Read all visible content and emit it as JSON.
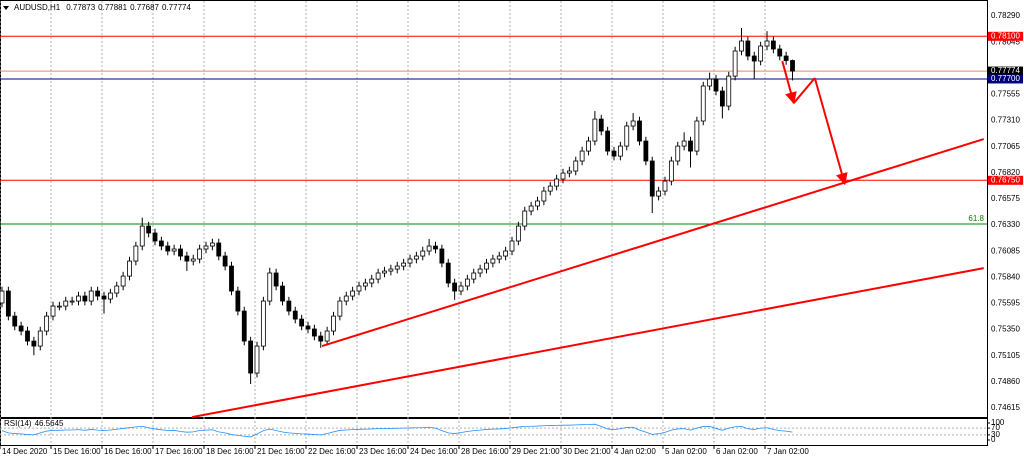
{
  "chart_data": [
    {
      "type": "candlestick",
      "title": "AUDUSD,H1",
      "categories": [
        "14 Dec 2020",
        null,
        null,
        null,
        null,
        null,
        null,
        null,
        "15 Dec 16:00",
        null,
        null,
        null,
        null,
        null,
        null,
        null,
        "16 Dec 16:00",
        null,
        null,
        null,
        null,
        null,
        null,
        null,
        "17 Dec 16:00",
        null,
        null,
        null,
        null,
        null,
        null,
        null,
        "18 Dec 16:00",
        null,
        null,
        null,
        null,
        null,
        null,
        null,
        "21 Dec 16:00",
        null,
        null,
        null,
        null,
        null,
        null,
        null,
        "22 Dec 16:00",
        null,
        null,
        null,
        null,
        null,
        null,
        null,
        "23 Dec 16:00",
        null,
        null,
        null,
        null,
        null,
        null,
        null,
        "24 Dec 16:00",
        null,
        null,
        null,
        null,
        null,
        null,
        null,
        "28 Dec 16:00",
        null,
        null,
        null,
        null,
        null,
        null,
        null,
        "29 Dec 21:00",
        null,
        null,
        null,
        null,
        null,
        null,
        null,
        "30 Dec 21:00",
        null,
        null,
        null,
        null,
        null,
        null,
        null,
        "4 Jan 02:00",
        null,
        null,
        null,
        null,
        null,
        null,
        null,
        "5 Jan 02:00",
        null,
        null,
        null,
        null,
        null,
        null,
        null,
        "6 Jan 02:00",
        null,
        null,
        null,
        null,
        null,
        null,
        null,
        "7 Jan 02:00",
        null,
        null,
        null,
        null
      ],
      "open": [
        0.756,
        0.75712,
        0.75477,
        0.75384,
        0.75337,
        0.75243,
        0.75196,
        0.75337,
        0.75477,
        0.75571,
        0.75571,
        0.75618,
        0.75618,
        0.75665,
        0.75618,
        0.75712,
        0.75665,
        0.75637,
        0.75693,
        0.75759,
        0.75852,
        0.75993,
        0.76134,
        0.76321,
        0.76256,
        0.76181,
        0.76134,
        0.76087,
        0.76106,
        0.7604,
        0.75993,
        0.76012,
        0.76106,
        0.76134,
        0.76162,
        0.7604,
        0.75946,
        0.75712,
        0.75524,
        0.75243,
        0.74943,
        0.75196,
        0.75618,
        0.75881,
        0.75759,
        0.75618,
        0.75524,
        0.75449,
        0.75384,
        0.75356,
        0.7529,
        0.75243,
        0.75337,
        0.75477,
        0.75618,
        0.75665,
        0.75712,
        0.75759,
        0.75787,
        0.75824,
        0.75881,
        0.75899,
        0.75918,
        0.75946,
        0.75974,
        0.76012,
        0.7604,
        0.76087,
        0.76134,
        0.76106,
        0.75974,
        0.75787,
        0.75712,
        0.75759,
        0.75824,
        0.75881,
        0.75918,
        0.75974,
        0.76012,
        0.7604,
        0.76087,
        0.76181,
        0.76321,
        0.76462,
        0.76509,
        0.76556,
        0.76649,
        0.76696,
        0.76762,
        0.76818,
        0.76837,
        0.76931,
        0.77024,
        0.77118,
        0.77324,
        0.77212,
        0.77024,
        0.76977,
        0.77071,
        0.77259,
        0.77306,
        0.77118,
        0.76931,
        0.76602,
        0.76649,
        0.76743,
        0.76931,
        0.77071,
        0.77118,
        0.77024,
        0.77306,
        0.77634,
        0.77699,
        0.77587,
        0.77446,
        0.77727,
        0.77962,
        0.78056,
        0.77915,
        0.77868,
        0.78009,
        0.78056,
        0.77981,
        0.77915,
        0.77873
      ],
      "high": [
        0.75752,
        0.75752,
        0.75517,
        0.75424,
        0.75377,
        0.75283,
        0.75377,
        0.75517,
        0.75611,
        0.75611,
        0.75658,
        0.75658,
        0.75705,
        0.75705,
        0.75752,
        0.75752,
        0.75705,
        0.75733,
        0.75799,
        0.75892,
        0.76033,
        0.76174,
        0.764,
        0.76361,
        0.76296,
        0.76221,
        0.76174,
        0.76146,
        0.76146,
        0.7608,
        0.76052,
        0.76146,
        0.76174,
        0.76202,
        0.76202,
        0.7608,
        0.75986,
        0.75752,
        0.75564,
        0.75283,
        0.75236,
        0.75658,
        0.7593,
        0.75921,
        0.75799,
        0.75658,
        0.75564,
        0.75489,
        0.75424,
        0.75396,
        0.7533,
        0.75377,
        0.75517,
        0.75658,
        0.75705,
        0.75752,
        0.75799,
        0.75827,
        0.75864,
        0.75921,
        0.75939,
        0.75958,
        0.75986,
        0.76014,
        0.76052,
        0.7608,
        0.76127,
        0.762,
        0.76174,
        0.76146,
        0.76014,
        0.75827,
        0.75799,
        0.75864,
        0.75921,
        0.75958,
        0.76014,
        0.76052,
        0.7608,
        0.76127,
        0.76221,
        0.76361,
        0.76502,
        0.76549,
        0.76596,
        0.76689,
        0.76736,
        0.76802,
        0.76858,
        0.76877,
        0.76971,
        0.77064,
        0.77158,
        0.77399,
        0.77364,
        0.77252,
        0.77064,
        0.77111,
        0.77299,
        0.7738,
        0.77346,
        0.77158,
        0.76971,
        0.76689,
        0.76783,
        0.76971,
        0.77111,
        0.772,
        0.77158,
        0.77346,
        0.77674,
        0.7776,
        0.77739,
        0.77627,
        0.77767,
        0.78002,
        0.78178,
        0.78096,
        0.77955,
        0.78049,
        0.78149,
        0.78096,
        0.78021,
        0.77955,
        0.77881
      ],
      "low": [
        0.7556,
        0.75437,
        0.75344,
        0.75297,
        0.75203,
        0.7511,
        0.75156,
        0.75297,
        0.75437,
        0.75531,
        0.75531,
        0.75578,
        0.75578,
        0.75578,
        0.75578,
        0.75625,
        0.755,
        0.75597,
        0.75653,
        0.75719,
        0.75812,
        0.75953,
        0.76094,
        0.76216,
        0.76141,
        0.76094,
        0.76047,
        0.76047,
        0.76,
        0.759,
        0.75953,
        0.75972,
        0.76066,
        0.76094,
        0.76,
        0.75906,
        0.75672,
        0.75484,
        0.75203,
        0.7484,
        0.74903,
        0.75156,
        0.75578,
        0.75719,
        0.75578,
        0.75484,
        0.75409,
        0.75344,
        0.75316,
        0.7525,
        0.7518,
        0.75203,
        0.75297,
        0.75437,
        0.75578,
        0.75625,
        0.75672,
        0.75719,
        0.75747,
        0.75784,
        0.75841,
        0.75859,
        0.75878,
        0.75906,
        0.75934,
        0.75972,
        0.76,
        0.76047,
        0.76066,
        0.75934,
        0.75747,
        0.7563,
        0.75672,
        0.75719,
        0.75784,
        0.75841,
        0.75878,
        0.75934,
        0.75972,
        0.76,
        0.76047,
        0.76141,
        0.76281,
        0.76422,
        0.76469,
        0.76516,
        0.76609,
        0.76656,
        0.76722,
        0.76778,
        0.76797,
        0.76891,
        0.76984,
        0.77078,
        0.77172,
        0.76984,
        0.76937,
        0.76937,
        0.77031,
        0.77219,
        0.77078,
        0.76891,
        0.76443,
        0.76562,
        0.76609,
        0.76703,
        0.76891,
        0.77031,
        0.7687,
        0.76984,
        0.77266,
        0.77594,
        0.77547,
        0.7733,
        0.77406,
        0.77687,
        0.77922,
        0.77875,
        0.777,
        0.77828,
        0.77969,
        0.77941,
        0.77875,
        0.77833,
        0.77687
      ],
      "close": [
        0.75712,
        0.75477,
        0.75384,
        0.75337,
        0.75243,
        0.75196,
        0.75337,
        0.75477,
        0.75571,
        0.75571,
        0.75618,
        0.75618,
        0.75665,
        0.75618,
        0.75712,
        0.75665,
        0.75637,
        0.75693,
        0.75759,
        0.75852,
        0.75993,
        0.76134,
        0.76321,
        0.76256,
        0.76181,
        0.76134,
        0.76087,
        0.76106,
        0.7604,
        0.75993,
        0.76012,
        0.76106,
        0.76134,
        0.76162,
        0.7604,
        0.75946,
        0.75712,
        0.75524,
        0.75243,
        0.74943,
        0.75196,
        0.75618,
        0.75881,
        0.75759,
        0.75618,
        0.75524,
        0.75449,
        0.75384,
        0.75356,
        0.7529,
        0.75243,
        0.75337,
        0.75477,
        0.75618,
        0.75665,
        0.75712,
        0.75759,
        0.75787,
        0.75824,
        0.75881,
        0.75899,
        0.75918,
        0.75946,
        0.75974,
        0.76012,
        0.7604,
        0.76087,
        0.76134,
        0.76106,
        0.75974,
        0.75787,
        0.75712,
        0.75759,
        0.75824,
        0.75881,
        0.75918,
        0.75974,
        0.76012,
        0.7604,
        0.76087,
        0.76181,
        0.76321,
        0.76462,
        0.76509,
        0.76556,
        0.76649,
        0.76696,
        0.76762,
        0.76818,
        0.76837,
        0.76931,
        0.77024,
        0.77118,
        0.77324,
        0.77212,
        0.77024,
        0.76977,
        0.77071,
        0.77259,
        0.77306,
        0.77118,
        0.76931,
        0.76602,
        0.76649,
        0.76743,
        0.76931,
        0.77071,
        0.77118,
        0.77024,
        0.77306,
        0.77634,
        0.77699,
        0.77587,
        0.77446,
        0.77727,
        0.77962,
        0.78056,
        0.77915,
        0.77868,
        0.78009,
        0.78056,
        0.77981,
        0.77915,
        0.77873,
        0.77774
      ],
      "color_up": "#ffffff",
      "color_down": "#000000",
      "color_line": "#000000",
      "ylim": [
        0.74531,
        0.78431
      ],
      "yticks": [
        {
          "value": 0.7829,
          "label": "0.78290"
        },
        {
          "value": 0.78045,
          "label": "0.78045"
        },
        {
          "value": 0.77555,
          "label": "0.77555"
        },
        {
          "value": 0.7731,
          "label": "0.77310"
        },
        {
          "value": 0.77065,
          "label": "0.77065"
        },
        {
          "value": 0.7682,
          "label": "0.76820"
        },
        {
          "value": 0.76575,
          "label": "0.76575"
        },
        {
          "value": 0.7633,
          "label": "0.76330"
        },
        {
          "value": 0.76085,
          "label": "0.76085"
        },
        {
          "value": 0.7584,
          "label": "0.75840"
        },
        {
          "value": 0.75595,
          "label": "0.75595"
        },
        {
          "value": 0.7535,
          "label": "0.75350"
        },
        {
          "value": 0.75105,
          "label": "0.75105"
        },
        {
          "value": 0.7486,
          "label": "0.74860"
        },
        {
          "value": 0.74615,
          "label": "0.74615"
        }
      ],
      "grid": "vertical",
      "levels": [
        {
          "price": 0.781,
          "label": "0.78100",
          "color": "#ff0000",
          "label_box": true
        },
        {
          "price": 0.77774,
          "label": "0.77774",
          "color": "#f08070",
          "label_box": true,
          "box_color": "#000000"
        },
        {
          "price": 0.777,
          "label": "0.77700",
          "color": "#000080",
          "label_box": true
        },
        {
          "price": 0.7675,
          "label": "0.76750",
          "color": "#ff0000",
          "label_box": true
        },
        {
          "price": 0.7634,
          "label": "61.8",
          "color": "#008000",
          "label_box": false
        }
      ],
      "trendlines": [
        {
          "x": [
            50.2,
            154
          ],
          "y": [
            0.75196,
            0.77137
          ],
          "color": "#ff0000"
        },
        {
          "x": [
            29.8,
            154
          ],
          "y": [
            0.7453,
            0.75927
          ],
          "color": "#ff0000"
        }
      ],
      "arrows": [
        {
          "x": [
            122.4,
            124.2
          ],
          "y": [
            0.77868,
            0.77474
          ],
          "color": "#ff0000"
        },
        {
          "x": [
            124.2,
            127.5
          ],
          "y": [
            0.77474,
            0.77709
          ],
          "color": "#ff0000"
        },
        {
          "x": [
            127.5,
            132.2
          ],
          "y": [
            0.77709,
            0.76715
          ],
          "color": "#ff0000"
        }
      ]
    },
    {
      "type": "line",
      "title": "RSI(14)",
      "color": "#1e90ff",
      "values": [
        55,
        42,
        38,
        36,
        32,
        30,
        42,
        52,
        57,
        57,
        59,
        59,
        61,
        57,
        62,
        58,
        55,
        59,
        63,
        68,
        73,
        77,
        81,
        72,
        65,
        60,
        56,
        57,
        50,
        46,
        48,
        56,
        58,
        60,
        48,
        42,
        32,
        27,
        22,
        18,
        35,
        55,
        64,
        56,
        47,
        42,
        39,
        36,
        35,
        32,
        30,
        38,
        48,
        57,
        59,
        61,
        63,
        64,
        65,
        67,
        67,
        68,
        69,
        70,
        71,
        72,
        73,
        75,
        70,
        55,
        42,
        38,
        44,
        50,
        55,
        58,
        62,
        64,
        65,
        68,
        72,
        76,
        80,
        81,
        82,
        84,
        85,
        86,
        87,
        87,
        89,
        90,
        91,
        93,
        80,
        65,
        61,
        66,
        74,
        75,
        58,
        46,
        33,
        37,
        45,
        58,
        65,
        67,
        58,
        70,
        79,
        80,
        68,
        57,
        70,
        78,
        80,
        66,
        62,
        70,
        72,
        62,
        55,
        52,
        46.5645
      ],
      "ylim": [
        0,
        100
      ],
      "yticks": [
        100,
        70,
        30,
        0
      ]
    }
  ]
}
